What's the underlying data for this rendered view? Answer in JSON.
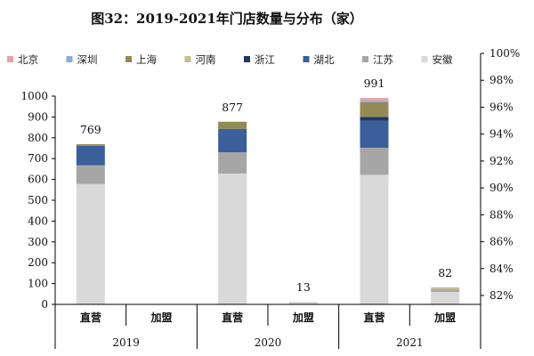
{
  "chart_data": {
    "type": "bar",
    "stacked": true,
    "title": "图32：2019-2021年门店数量与分布（家）",
    "groups": [
      "2019",
      "2020",
      "2021"
    ],
    "group_categories": [
      "直营",
      "加盟"
    ],
    "categories": [
      "2019 直营",
      "2019 加盟",
      "2020 直营",
      "2020 加盟",
      "2021 直营",
      "2021 加盟"
    ],
    "totals": [
      769,
      0,
      877,
      13,
      991,
      82
    ],
    "totals_labels": [
      "769",
      "",
      "877",
      "13",
      "991",
      "82"
    ],
    "series": [
      {
        "name": "安徽",
        "color": "#d9d9d9",
        "values": [
          578,
          0,
          628,
          13,
          622,
          60
        ]
      },
      {
        "name": "江苏",
        "color": "#a6a6a6",
        "values": [
          90,
          0,
          102,
          0,
          130,
          12
        ]
      },
      {
        "name": "湖北",
        "color": "#3a5f9a",
        "values": [
          94,
          0,
          113,
          0,
          130,
          0
        ]
      },
      {
        "name": "浙江",
        "color": "#1f3864",
        "values": [
          0,
          0,
          0,
          0,
          18,
          0
        ]
      },
      {
        "name": "河南",
        "color": "#c4bd97",
        "values": [
          0,
          0,
          0,
          0,
          0,
          10
        ]
      },
      {
        "name": "上海",
        "color": "#948a54",
        "values": [
          7,
          0,
          34,
          0,
          70,
          0
        ]
      },
      {
        "name": "深圳",
        "color": "#8eaadb",
        "values": [
          0,
          0,
          0,
          0,
          8,
          0
        ]
      },
      {
        "name": "北京",
        "color": "#e6a0a8",
        "values": [
          0,
          0,
          0,
          0,
          13,
          0
        ]
      }
    ],
    "legend_order": [
      "北京",
      "深圳",
      "上海",
      "河南",
      "浙江",
      "湖北",
      "江苏",
      "安徽"
    ],
    "y_left": {
      "min": 0,
      "max": 1000,
      "ticks": [
        0,
        100,
        200,
        300,
        400,
        500,
        600,
        700,
        800,
        900,
        1000
      ]
    },
    "y_right": {
      "ticks": [
        "82%",
        "84%",
        "86%",
        "88%",
        "90%",
        "92%",
        "94%",
        "96%",
        "98%",
        "100%"
      ]
    },
    "legend_position": "top",
    "grid": false
  }
}
